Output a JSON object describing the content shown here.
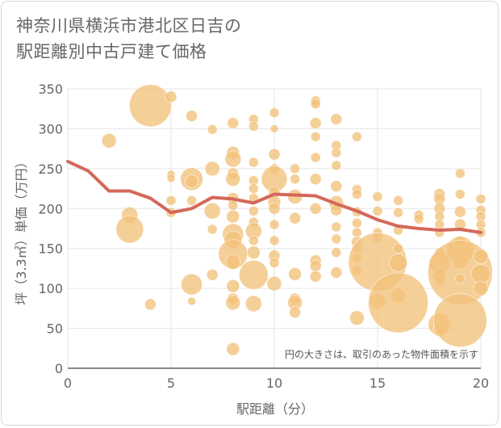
{
  "title_line1": "神奈川県横浜市港北区日吉の",
  "title_line2": "駅距離別中古戸建て価格",
  "chart_data": {
    "type": "scatter",
    "title": "神奈川県横浜市港北区日吉の駅距離別中古戸建て価格",
    "xlabel": "駅距離（分）",
    "ylabel": "坪（3.3㎡）単価（万円）",
    "xlim": [
      0,
      20
    ],
    "ylim": [
      0,
      350
    ],
    "xticks": [
      0,
      5,
      10,
      15,
      20
    ],
    "yticks": [
      0,
      50,
      100,
      150,
      200,
      250,
      300,
      350
    ],
    "grid": true,
    "note": "円の大きさは、取引のあった物件面積を示す",
    "colors": {
      "bubble": "#f2c27b",
      "line": "#d4685a",
      "grid": "#e6e6e6"
    },
    "series": [
      {
        "kind": "bubble",
        "points": [
          {
            "x": 2,
            "y": 285,
            "s": 9
          },
          {
            "x": 3,
            "y": 192,
            "s": 10
          },
          {
            "x": 3,
            "y": 174,
            "s": 17
          },
          {
            "x": 4,
            "y": 80,
            "s": 7
          },
          {
            "x": 4,
            "y": 329,
            "s": 26
          },
          {
            "x": 5,
            "y": 340,
            "s": 7
          },
          {
            "x": 5,
            "y": 243,
            "s": 5
          },
          {
            "x": 5,
            "y": 238,
            "s": 5
          },
          {
            "x": 5,
            "y": 210,
            "s": 6
          },
          {
            "x": 5,
            "y": 195,
            "s": 6
          },
          {
            "x": 6,
            "y": 316,
            "s": 7
          },
          {
            "x": 6,
            "y": 237,
            "s": 14
          },
          {
            "x": 6,
            "y": 234,
            "s": 8
          },
          {
            "x": 6,
            "y": 210,
            "s": 6
          },
          {
            "x": 6,
            "y": 105,
            "s": 13
          },
          {
            "x": 6,
            "y": 84,
            "s": 5
          },
          {
            "x": 7,
            "y": 299,
            "s": 6
          },
          {
            "x": 7,
            "y": 250,
            "s": 9
          },
          {
            "x": 7,
            "y": 197,
            "s": 10
          },
          {
            "x": 7,
            "y": 174,
            "s": 6
          },
          {
            "x": 7,
            "y": 117,
            "s": 7
          },
          {
            "x": 8,
            "y": 307,
            "s": 7
          },
          {
            "x": 8,
            "y": 270,
            "s": 8
          },
          {
            "x": 8,
            "y": 262,
            "s": 10
          },
          {
            "x": 8,
            "y": 244,
            "s": 7
          },
          {
            "x": 8,
            "y": 237,
            "s": 9
          },
          {
            "x": 8,
            "y": 213,
            "s": 7
          },
          {
            "x": 8,
            "y": 204,
            "s": 6
          },
          {
            "x": 8,
            "y": 190,
            "s": 8
          },
          {
            "x": 8,
            "y": 168,
            "s": 13
          },
          {
            "x": 8,
            "y": 161,
            "s": 11
          },
          {
            "x": 8,
            "y": 143,
            "s": 18
          },
          {
            "x": 8,
            "y": 133,
            "s": 9
          },
          {
            "x": 8,
            "y": 103,
            "s": 8
          },
          {
            "x": 8,
            "y": 87,
            "s": 7
          },
          {
            "x": 8,
            "y": 82,
            "s": 9
          },
          {
            "x": 8,
            "y": 24,
            "s": 8
          },
          {
            "x": 9,
            "y": 312,
            "s": 6
          },
          {
            "x": 9,
            "y": 303,
            "s": 6
          },
          {
            "x": 9,
            "y": 258,
            "s": 6
          },
          {
            "x": 9,
            "y": 235,
            "s": 6
          },
          {
            "x": 9,
            "y": 225,
            "s": 6
          },
          {
            "x": 9,
            "y": 213,
            "s": 6
          },
          {
            "x": 9,
            "y": 197,
            "s": 6
          },
          {
            "x": 9,
            "y": 183,
            "s": 6
          },
          {
            "x": 9,
            "y": 172,
            "s": 10
          },
          {
            "x": 9,
            "y": 160,
            "s": 6
          },
          {
            "x": 9,
            "y": 145,
            "s": 8
          },
          {
            "x": 9,
            "y": 117,
            "s": 18
          },
          {
            "x": 9,
            "y": 81,
            "s": 10
          },
          {
            "x": 10,
            "y": 320,
            "s": 6
          },
          {
            "x": 10,
            "y": 300,
            "s": 5
          },
          {
            "x": 10,
            "y": 268,
            "s": 7
          },
          {
            "x": 10,
            "y": 250,
            "s": 6
          },
          {
            "x": 10,
            "y": 237,
            "s": 16
          },
          {
            "x": 10,
            "y": 220,
            "s": 7
          },
          {
            "x": 10,
            "y": 208,
            "s": 8
          },
          {
            "x": 10,
            "y": 200,
            "s": 7
          },
          {
            "x": 10,
            "y": 180,
            "s": 6
          },
          {
            "x": 10,
            "y": 160,
            "s": 6
          },
          {
            "x": 10,
            "y": 141,
            "s": 7
          },
          {
            "x": 10,
            "y": 132,
            "s": 6
          },
          {
            "x": 10,
            "y": 106,
            "s": 9
          },
          {
            "x": 11,
            "y": 250,
            "s": 6
          },
          {
            "x": 11,
            "y": 237,
            "s": 6
          },
          {
            "x": 11,
            "y": 215,
            "s": 9
          },
          {
            "x": 11,
            "y": 188,
            "s": 7
          },
          {
            "x": 11,
            "y": 118,
            "s": 8
          },
          {
            "x": 11,
            "y": 87,
            "s": 7
          },
          {
            "x": 11,
            "y": 82,
            "s": 9
          },
          {
            "x": 11,
            "y": 70,
            "s": 7
          },
          {
            "x": 12,
            "y": 335,
            "s": 6
          },
          {
            "x": 12,
            "y": 331,
            "s": 6
          },
          {
            "x": 12,
            "y": 307,
            "s": 7
          },
          {
            "x": 12,
            "y": 290,
            "s": 6
          },
          {
            "x": 12,
            "y": 264,
            "s": 6
          },
          {
            "x": 12,
            "y": 237,
            "s": 7
          },
          {
            "x": 12,
            "y": 200,
            "s": 7
          },
          {
            "x": 12,
            "y": 135,
            "s": 7
          },
          {
            "x": 12,
            "y": 128,
            "s": 7
          },
          {
            "x": 12,
            "y": 115,
            "s": 7
          },
          {
            "x": 13,
            "y": 312,
            "s": 7
          },
          {
            "x": 13,
            "y": 279,
            "s": 6
          },
          {
            "x": 13,
            "y": 270,
            "s": 6
          },
          {
            "x": 13,
            "y": 254,
            "s": 6
          },
          {
            "x": 13,
            "y": 228,
            "s": 7
          },
          {
            "x": 13,
            "y": 207,
            "s": 9
          },
          {
            "x": 13,
            "y": 198,
            "s": 7
          },
          {
            "x": 13,
            "y": 177,
            "s": 6
          },
          {
            "x": 13,
            "y": 162,
            "s": 6
          },
          {
            "x": 13,
            "y": 145,
            "s": 6
          },
          {
            "x": 13,
            "y": 120,
            "s": 7
          },
          {
            "x": 14,
            "y": 290,
            "s": 6
          },
          {
            "x": 14,
            "y": 224,
            "s": 6
          },
          {
            "x": 14,
            "y": 218,
            "s": 6
          },
          {
            "x": 14,
            "y": 196,
            "s": 6
          },
          {
            "x": 14,
            "y": 182,
            "s": 6
          },
          {
            "x": 14,
            "y": 170,
            "s": 6
          },
          {
            "x": 14,
            "y": 158,
            "s": 7
          },
          {
            "x": 14,
            "y": 150,
            "s": 6
          },
          {
            "x": 14,
            "y": 138,
            "s": 6
          },
          {
            "x": 14,
            "y": 122,
            "s": 6
          },
          {
            "x": 14,
            "y": 63,
            "s": 9
          },
          {
            "x": 15,
            "y": 215,
            "s": 6
          },
          {
            "x": 15,
            "y": 197,
            "s": 6
          },
          {
            "x": 15,
            "y": 170,
            "s": 6
          },
          {
            "x": 15,
            "y": 163,
            "s": 6
          },
          {
            "x": 15,
            "y": 133,
            "s": 36
          },
          {
            "x": 15,
            "y": 84,
            "s": 10
          },
          {
            "x": 16,
            "y": 210,
            "s": 6
          },
          {
            "x": 16,
            "y": 195,
            "s": 6
          },
          {
            "x": 16,
            "y": 173,
            "s": 6
          },
          {
            "x": 16,
            "y": 150,
            "s": 6
          },
          {
            "x": 16,
            "y": 132,
            "s": 11
          },
          {
            "x": 16,
            "y": 91,
            "s": 9
          },
          {
            "x": 16,
            "y": 82,
            "s": 37
          },
          {
            "x": 17,
            "y": 192,
            "s": 6
          },
          {
            "x": 17,
            "y": 187,
            "s": 6
          },
          {
            "x": 18,
            "y": 218,
            "s": 7
          },
          {
            "x": 18,
            "y": 212,
            "s": 7
          },
          {
            "x": 18,
            "y": 200,
            "s": 7
          },
          {
            "x": 18,
            "y": 190,
            "s": 6
          },
          {
            "x": 18,
            "y": 180,
            "s": 6
          },
          {
            "x": 18,
            "y": 170,
            "s": 6
          },
          {
            "x": 18,
            "y": 145,
            "s": 6
          },
          {
            "x": 18,
            "y": 132,
            "s": 13
          },
          {
            "x": 18,
            "y": 117,
            "s": 8
          },
          {
            "x": 18,
            "y": 108,
            "s": 6
          },
          {
            "x": 18,
            "y": 55,
            "s": 14
          },
          {
            "x": 18,
            "y": 48,
            "s": 8
          },
          {
            "x": 19,
            "y": 244,
            "s": 6
          },
          {
            "x": 19,
            "y": 218,
            "s": 6
          },
          {
            "x": 19,
            "y": 196,
            "s": 7
          },
          {
            "x": 19,
            "y": 180,
            "s": 7
          },
          {
            "x": 19,
            "y": 160,
            "s": 6
          },
          {
            "x": 19,
            "y": 148,
            "s": 17
          },
          {
            "x": 19,
            "y": 134,
            "s": 9
          },
          {
            "x": 19,
            "y": 120,
            "s": 40
          },
          {
            "x": 19,
            "y": 112,
            "s": 6
          },
          {
            "x": 19,
            "y": 60,
            "s": 33
          },
          {
            "x": 20,
            "y": 212,
            "s": 6
          },
          {
            "x": 20,
            "y": 198,
            "s": 6
          },
          {
            "x": 20,
            "y": 190,
            "s": 6
          },
          {
            "x": 20,
            "y": 180,
            "s": 6
          },
          {
            "x": 20,
            "y": 170,
            "s": 6
          },
          {
            "x": 20,
            "y": 140,
            "s": 9
          },
          {
            "x": 20,
            "y": 118,
            "s": 12
          },
          {
            "x": 20,
            "y": 100,
            "s": 9
          }
        ]
      },
      {
        "kind": "line",
        "x": [
          0,
          1,
          2,
          3,
          4,
          5,
          6,
          7,
          8,
          9,
          10,
          11,
          12,
          13,
          14,
          15,
          16,
          17,
          18,
          19,
          20
        ],
        "y": [
          259,
          247,
          222,
          222,
          213,
          195,
          200,
          214,
          212,
          207,
          218,
          217,
          216,
          206,
          197,
          186,
          178,
          175,
          173,
          174,
          170
        ]
      }
    ]
  }
}
